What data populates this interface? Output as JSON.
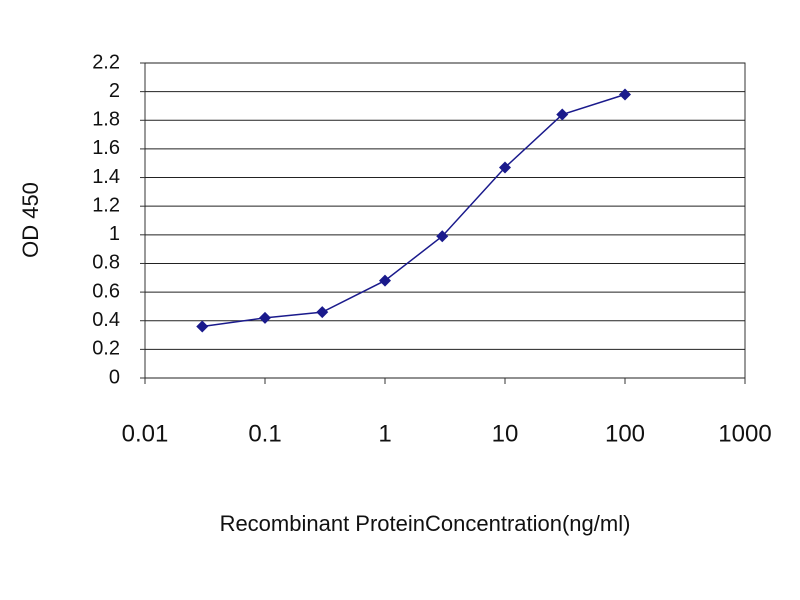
{
  "chart_data": {
    "type": "line",
    "x": [
      0.03,
      0.1,
      0.3,
      1,
      3,
      10,
      30,
      100
    ],
    "values": [
      0.36,
      0.42,
      0.46,
      0.68,
      0.99,
      1.47,
      1.84,
      1.98
    ],
    "color": "#1a1a8c",
    "xscale": "log",
    "xlim": [
      0.01,
      1000
    ],
    "xticks": [
      0.01,
      0.1,
      1,
      10,
      100,
      1000
    ],
    "ylim": [
      0,
      2.2
    ],
    "yticks": [
      0,
      0.2,
      0.4,
      0.6,
      0.8,
      1,
      1.2,
      1.4,
      1.6,
      1.8,
      2,
      2.2
    ],
    "grid": true,
    "xlabel": "Recombinant ProteinConcentration(ng/ml)",
    "ylabel": "OD 450"
  }
}
